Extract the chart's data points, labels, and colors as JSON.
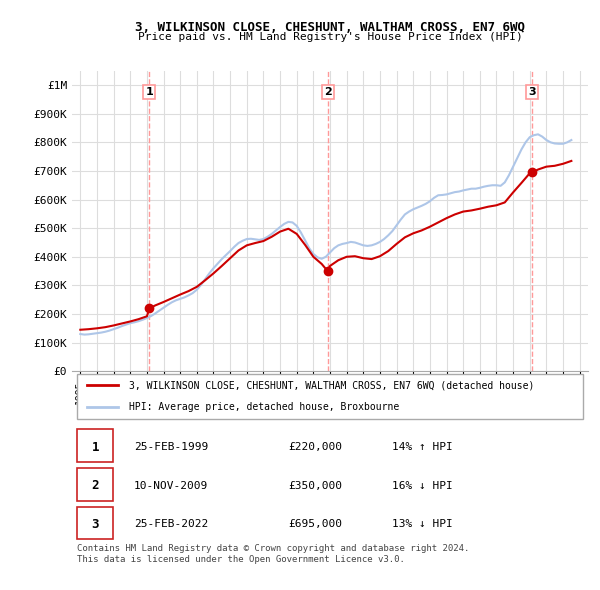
{
  "title": "3, WILKINSON CLOSE, CHESHUNT, WALTHAM CROSS, EN7 6WQ",
  "subtitle": "Price paid vs. HM Land Registry's House Price Index (HPI)",
  "ylabel": "",
  "ylim": [
    0,
    1050000
  ],
  "yticks": [
    0,
    100000,
    200000,
    300000,
    400000,
    500000,
    600000,
    700000,
    800000,
    900000,
    1000000
  ],
  "ytick_labels": [
    "£0",
    "£100K",
    "£200K",
    "£300K",
    "£400K",
    "£500K",
    "£600K",
    "£700K",
    "£800K",
    "£900K",
    "£1M"
  ],
  "hpi_color": "#aec6e8",
  "price_color": "#cc0000",
  "marker_color": "#cc0000",
  "vline_color": "#ff9999",
  "background_color": "#ffffff",
  "grid_color": "#dddddd",
  "purchases": [
    {
      "label": "1",
      "date_num": 1999.15,
      "price": 220000
    },
    {
      "label": "2",
      "date_num": 2009.86,
      "price": 350000
    },
    {
      "label": "3",
      "date_num": 2022.15,
      "price": 695000
    }
  ],
  "legend_line1": "3, WILKINSON CLOSE, CHESHUNT, WALTHAM CROSS, EN7 6WQ (detached house)",
  "legend_line2": "HPI: Average price, detached house, Broxbourne",
  "table_rows": [
    {
      "num": "1",
      "date": "25-FEB-1999",
      "price": "£220,000",
      "hpi": "14% ↑ HPI"
    },
    {
      "num": "2",
      "date": "10-NOV-2009",
      "price": "£350,000",
      "hpi": "16% ↓ HPI"
    },
    {
      "num": "3",
      "date": "25-FEB-2022",
      "price": "£695,000",
      "hpi": "13% ↓ HPI"
    }
  ],
  "footnote": "Contains HM Land Registry data © Crown copyright and database right 2024.\nThis data is licensed under the Open Government Licence v3.0.",
  "hpi_data": {
    "years": [
      1995.0,
      1995.25,
      1995.5,
      1995.75,
      1996.0,
      1996.25,
      1996.5,
      1996.75,
      1997.0,
      1997.25,
      1997.5,
      1997.75,
      1998.0,
      1998.25,
      1998.5,
      1998.75,
      1999.0,
      1999.25,
      1999.5,
      1999.75,
      2000.0,
      2000.25,
      2000.5,
      2000.75,
      2001.0,
      2001.25,
      2001.5,
      2001.75,
      2002.0,
      2002.25,
      2002.5,
      2002.75,
      2003.0,
      2003.25,
      2003.5,
      2003.75,
      2004.0,
      2004.25,
      2004.5,
      2004.75,
      2005.0,
      2005.25,
      2005.5,
      2005.75,
      2006.0,
      2006.25,
      2006.5,
      2006.75,
      2007.0,
      2007.25,
      2007.5,
      2007.75,
      2008.0,
      2008.25,
      2008.5,
      2008.75,
      2009.0,
      2009.25,
      2009.5,
      2009.75,
      2010.0,
      2010.25,
      2010.5,
      2010.75,
      2011.0,
      2011.25,
      2011.5,
      2011.75,
      2012.0,
      2012.25,
      2012.5,
      2012.75,
      2013.0,
      2013.25,
      2013.5,
      2013.75,
      2014.0,
      2014.25,
      2014.5,
      2014.75,
      2015.0,
      2015.25,
      2015.5,
      2015.75,
      2016.0,
      2016.25,
      2016.5,
      2016.75,
      2017.0,
      2017.25,
      2017.5,
      2017.75,
      2018.0,
      2018.25,
      2018.5,
      2018.75,
      2019.0,
      2019.25,
      2019.5,
      2019.75,
      2020.0,
      2020.25,
      2020.5,
      2020.75,
      2021.0,
      2021.25,
      2021.5,
      2021.75,
      2022.0,
      2022.25,
      2022.5,
      2022.75,
      2023.0,
      2023.25,
      2023.5,
      2023.75,
      2024.0,
      2024.25,
      2024.5
    ],
    "values": [
      130000,
      128000,
      129000,
      131000,
      133000,
      135000,
      138000,
      142000,
      147000,
      152000,
      158000,
      163000,
      168000,
      171000,
      175000,
      180000,
      186000,
      193000,
      202000,
      212000,
      222000,
      232000,
      241000,
      248000,
      253000,
      258000,
      265000,
      273000,
      285000,
      302000,
      322000,
      342000,
      360000,
      376000,
      392000,
      406000,
      420000,
      435000,
      448000,
      456000,
      462000,
      463000,
      461000,
      459000,
      462000,
      470000,
      480000,
      492000,
      504000,
      515000,
      522000,
      520000,
      508000,
      485000,
      458000,
      430000,
      410000,
      398000,
      393000,
      400000,
      415000,
      430000,
      440000,
      445000,
      448000,
      452000,
      450000,
      445000,
      440000,
      438000,
      440000,
      445000,
      452000,
      462000,
      475000,
      490000,
      510000,
      530000,
      548000,
      558000,
      566000,
      572000,
      578000,
      585000,
      594000,
      606000,
      615000,
      616000,
      618000,
      622000,
      626000,
      628000,
      632000,
      635000,
      638000,
      638000,
      641000,
      645000,
      648000,
      650000,
      650000,
      648000,
      660000,
      685000,
      715000,
      745000,
      775000,
      800000,
      818000,
      825000,
      828000,
      820000,
      808000,
      800000,
      796000,
      795000,
      795000,
      800000,
      808000
    ]
  },
  "price_line_data": {
    "years": [
      1995.0,
      1995.5,
      1996.0,
      1996.5,
      1997.0,
      1997.5,
      1998.0,
      1998.5,
      1999.0,
      1999.15,
      1999.5,
      2000.0,
      2000.5,
      2001.0,
      2001.5,
      2002.0,
      2002.5,
      2003.0,
      2003.5,
      2004.0,
      2004.5,
      2005.0,
      2005.5,
      2006.0,
      2006.5,
      2007.0,
      2007.5,
      2008.0,
      2008.5,
      2009.0,
      2009.5,
      2009.86,
      2010.0,
      2010.5,
      2011.0,
      2011.5,
      2012.0,
      2012.5,
      2013.0,
      2013.5,
      2014.0,
      2014.5,
      2015.0,
      2015.5,
      2016.0,
      2016.5,
      2017.0,
      2017.5,
      2018.0,
      2018.5,
      2019.0,
      2019.5,
      2020.0,
      2020.5,
      2021.0,
      2021.5,
      2022.0,
      2022.15,
      2022.5,
      2023.0,
      2023.5,
      2024.0,
      2024.5
    ],
    "values": [
      145000,
      147000,
      150000,
      154000,
      160000,
      167000,
      174000,
      182000,
      192000,
      220000,
      230000,
      242000,
      255000,
      268000,
      280000,
      295000,
      318000,
      342000,
      368000,
      395000,
      422000,
      440000,
      448000,
      455000,
      470000,
      488000,
      498000,
      480000,
      442000,
      400000,
      375000,
      350000,
      368000,
      388000,
      400000,
      402000,
      395000,
      392000,
      402000,
      420000,
      445000,
      468000,
      482000,
      492000,
      505000,
      520000,
      535000,
      548000,
      558000,
      562000,
      568000,
      575000,
      580000,
      590000,
      625000,
      658000,
      692000,
      695000,
      705000,
      715000,
      718000,
      725000,
      735000
    ]
  }
}
